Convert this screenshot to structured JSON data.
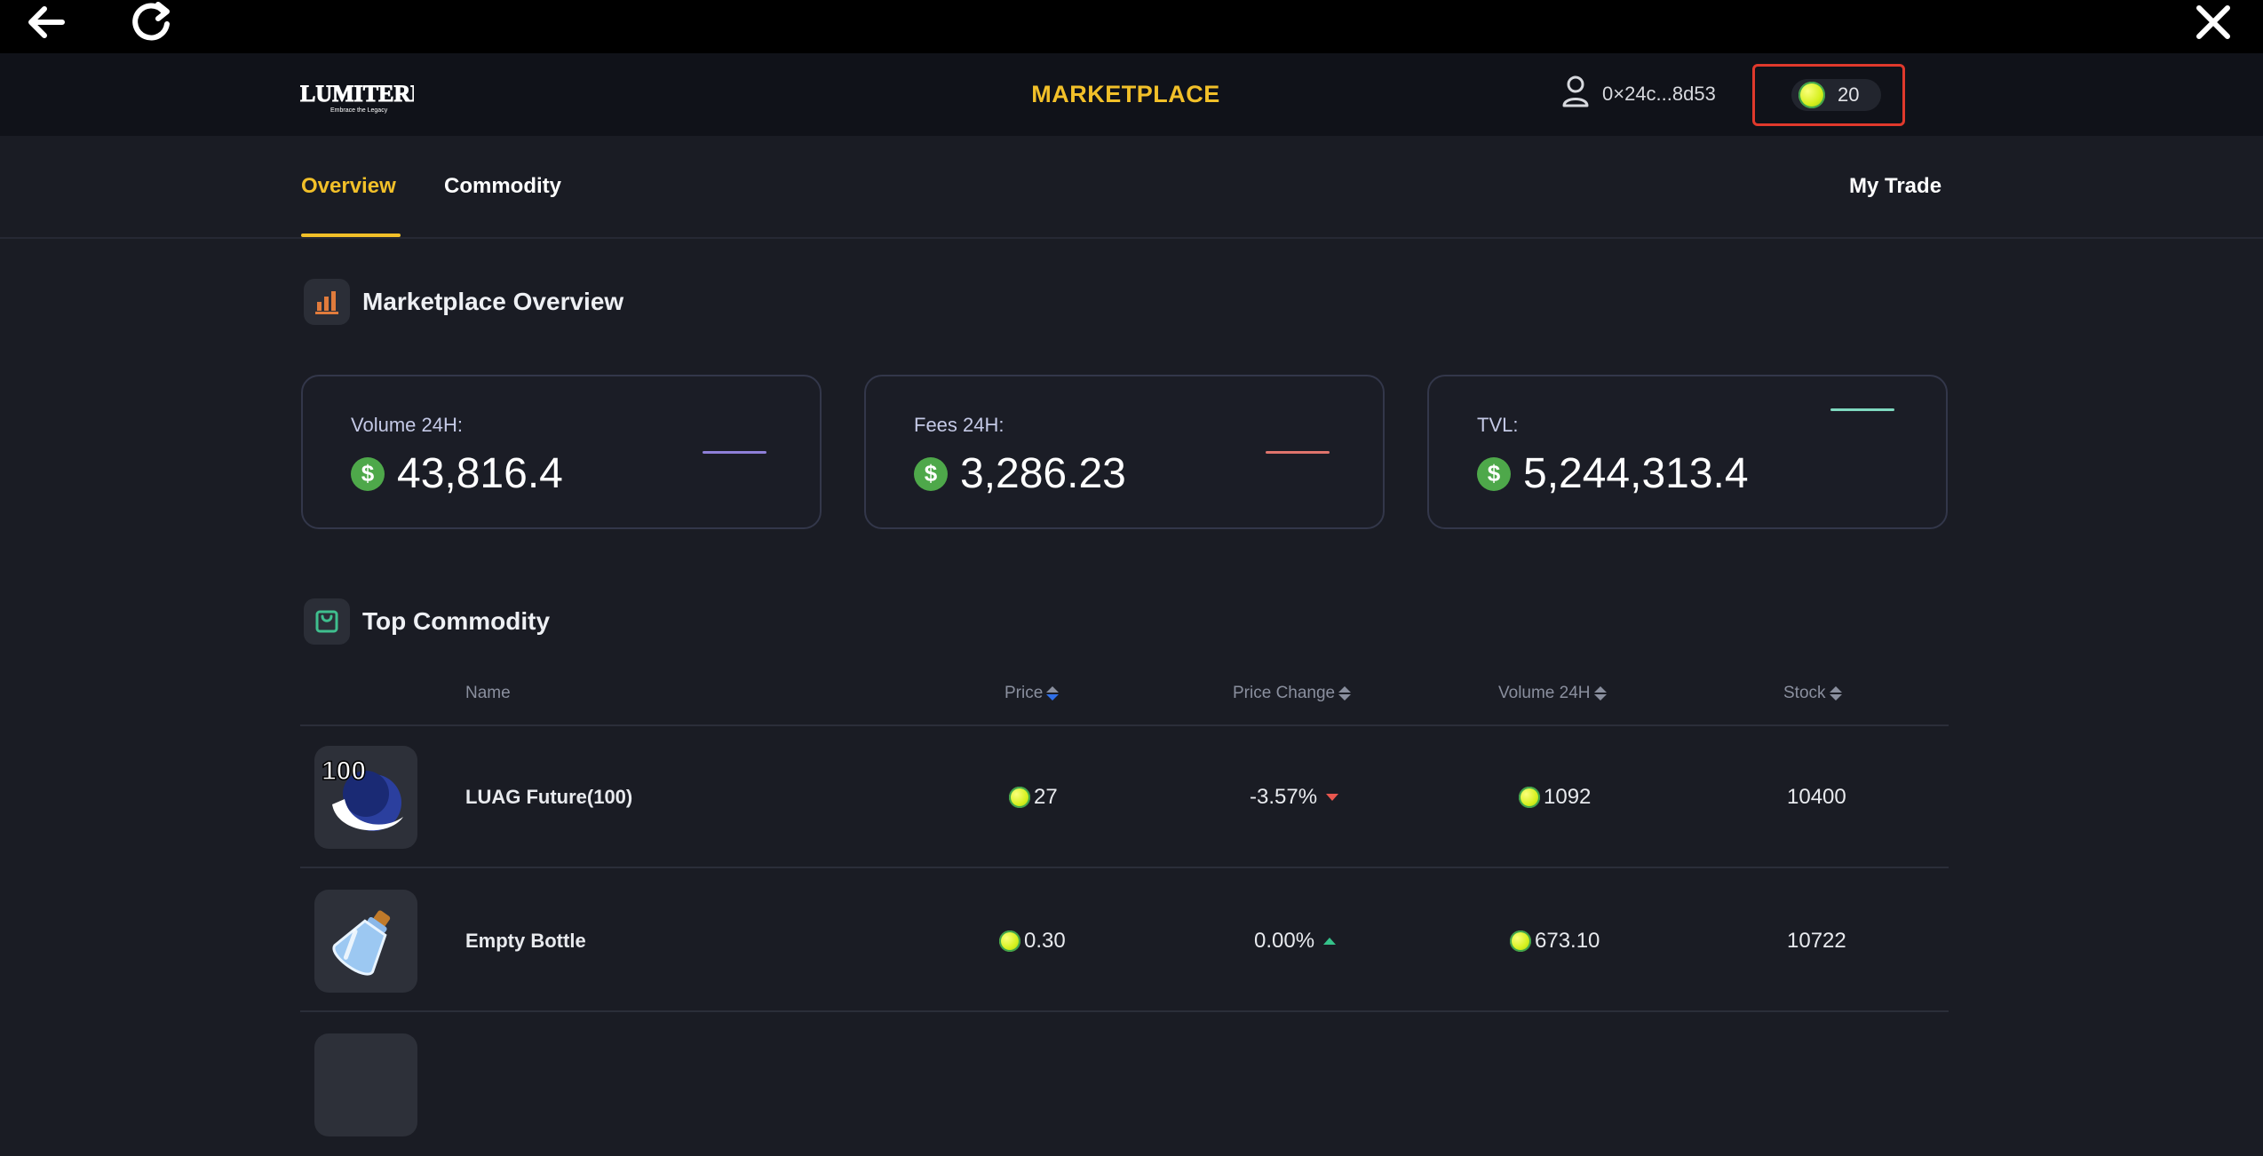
{
  "header": {
    "logo_text": "LUMITERRA",
    "logo_subtext": "Embrace the Legacy",
    "title": "MARKETPLACE",
    "wallet_address": "0×24c...8d53",
    "balance": "20"
  },
  "tabs": [
    {
      "label": "Overview",
      "active": true
    },
    {
      "label": "Commodity",
      "active": false
    }
  ],
  "my_trade_label": "My Trade",
  "overview": {
    "title": "Marketplace Overview",
    "cards": [
      {
        "label": "Volume 24H:",
        "value": "43,816.4",
        "line_color": "#8e7fd8"
      },
      {
        "label": "Fees 24H:",
        "value": "3,286.23",
        "line_color": "#e0746c"
      },
      {
        "label": "TVL:",
        "value": "5,244,313.4",
        "line_color": "#7fd8bf"
      }
    ]
  },
  "top_commodity": {
    "title": "Top Commodity",
    "columns": {
      "name": "Name",
      "price": "Price",
      "price_change": "Price Change",
      "volume": "Volume 24H",
      "stock": "Stock"
    },
    "rows": [
      {
        "name": "LUAG Future(100)",
        "price": "27",
        "change": "-3.57%",
        "direction": "down",
        "volume": "1092",
        "stock": "10400",
        "thumb_label": "100"
      },
      {
        "name": "Empty Bottle",
        "price": "0.30",
        "change": "0.00%",
        "direction": "up",
        "volume": "673.10",
        "stock": "10722"
      }
    ]
  },
  "colors": {
    "accent": "#f2c029",
    "highlight_box": "#e0392c",
    "down": "#e8574f",
    "up": "#35c28a"
  }
}
